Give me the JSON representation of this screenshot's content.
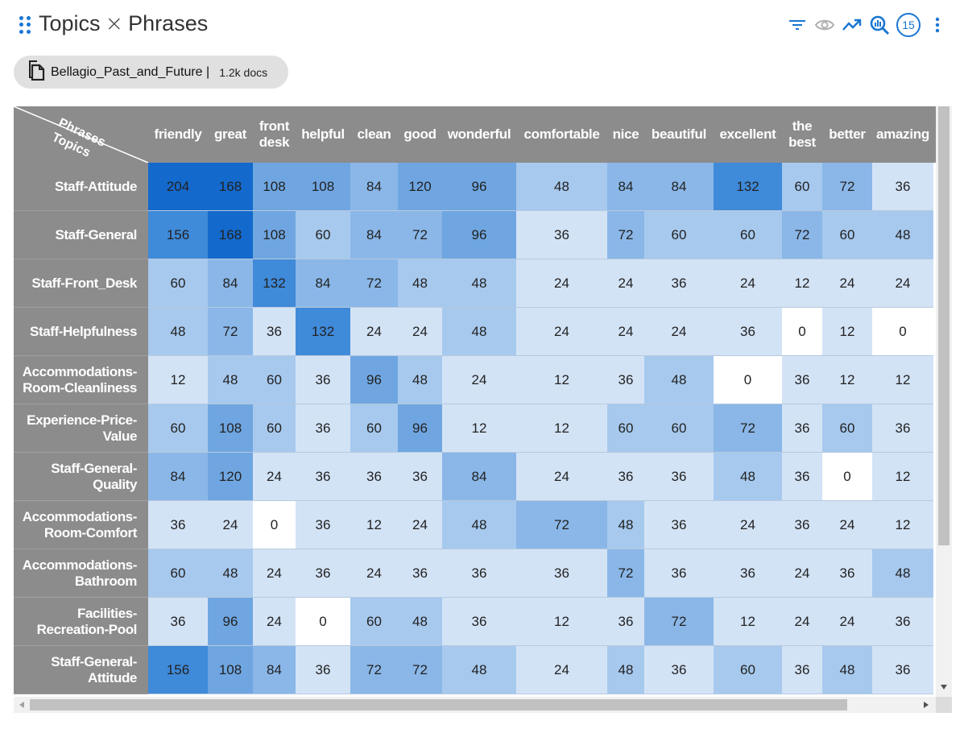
{
  "header": {
    "title_left": "Topics",
    "title_sep": "×",
    "title_right": "Phrases",
    "count": "15"
  },
  "toolbar_icons": [
    "filter-icon",
    "eye-icon",
    "trend-icon",
    "analytics-search-icon",
    "count-badge",
    "more-vert-icon"
  ],
  "dataset": {
    "name": "Bellagio_Past_and_Future",
    "separator": "|",
    "docs": "1.2k docs"
  },
  "corner": {
    "phrases": "Phrases",
    "topics": "Topics"
  },
  "colors": {
    "accent": "#1976d2",
    "header_bg": "#8c8c8c",
    "scale": [
      "#ffffff",
      "#d3e3f6",
      "#a7c9ee",
      "#8ab7e8",
      "#6fa6e1",
      "#3f8ad9",
      "#1469cc"
    ]
  },
  "columns": [
    {
      "label": "friendly",
      "w": 74
    },
    {
      "label": "great",
      "w": 56
    },
    {
      "label": "front desk",
      "w": 53
    },
    {
      "label": "helpful",
      "w": 68
    },
    {
      "label": "clean",
      "w": 59
    },
    {
      "label": "good",
      "w": 55
    },
    {
      "label": "wonderful",
      "w": 92
    },
    {
      "label": "comfortable",
      "w": 113
    },
    {
      "label": "nice",
      "w": 46
    },
    {
      "label": "beautiful",
      "w": 86
    },
    {
      "label": "excellent",
      "w": 85
    },
    {
      "label": "the best",
      "w": 50
    },
    {
      "label": "better",
      "w": 62
    },
    {
      "label": "amazing",
      "w": 76
    }
  ],
  "rows": [
    {
      "label": "Staff-Attitude",
      "values": [
        204,
        168,
        108,
        108,
        84,
        120,
        96,
        48,
        84,
        84,
        132,
        60,
        72,
        36
      ]
    },
    {
      "label": "Staff-General",
      "values": [
        156,
        168,
        108,
        60,
        84,
        72,
        96,
        36,
        72,
        60,
        60,
        72,
        60,
        48
      ]
    },
    {
      "label": "Staff-Front_Desk",
      "values": [
        60,
        84,
        132,
        84,
        72,
        48,
        48,
        24,
        24,
        36,
        24,
        12,
        24,
        24
      ]
    },
    {
      "label": "Staff-Helpfulness",
      "values": [
        48,
        72,
        36,
        132,
        24,
        24,
        48,
        24,
        24,
        24,
        36,
        0,
        12,
        0
      ]
    },
    {
      "label": "Accommodations-Room-Cleanliness",
      "values": [
        12,
        48,
        60,
        36,
        96,
        48,
        24,
        12,
        36,
        48,
        0,
        36,
        12,
        12
      ]
    },
    {
      "label": "Experience-Price-Value",
      "values": [
        60,
        108,
        60,
        36,
        60,
        96,
        12,
        12,
        60,
        60,
        72,
        36,
        60,
        36
      ]
    },
    {
      "label": "Staff-General-Quality",
      "values": [
        84,
        120,
        24,
        36,
        36,
        36,
        84,
        24,
        36,
        36,
        48,
        36,
        0,
        12
      ]
    },
    {
      "label": "Accommodations-Room-Comfort",
      "values": [
        36,
        24,
        0,
        36,
        12,
        24,
        48,
        72,
        48,
        36,
        24,
        36,
        24,
        12
      ]
    },
    {
      "label": "Accommodations-Bathroom",
      "values": [
        60,
        48,
        24,
        36,
        24,
        36,
        36,
        36,
        72,
        36,
        36,
        24,
        36,
        48
      ]
    },
    {
      "label": "Facilities-Recreation-Pool",
      "values": [
        36,
        96,
        24,
        0,
        60,
        48,
        36,
        12,
        36,
        72,
        12,
        24,
        24,
        36
      ]
    },
    {
      "label": "Staff-General-Attitude",
      "values": [
        156,
        108,
        84,
        36,
        72,
        72,
        48,
        24,
        48,
        36,
        60,
        36,
        48,
        36
      ]
    }
  ],
  "row_label_lines": [
    [
      "Staff-Attitude"
    ],
    [
      "Staff-General"
    ],
    [
      "Staff-Front_Desk"
    ],
    [
      "Staff-Helpfulness"
    ],
    [
      "Accommodations-",
      "Room-Cleanliness"
    ],
    [
      "Experience-Price-",
      "Value"
    ],
    [
      "Staff-General-",
      "Quality"
    ],
    [
      "Accommodations-",
      "Room-Comfort"
    ],
    [
      "Accommodations-",
      "Bathroom"
    ],
    [
      "Facilities-",
      "Recreation-Pool"
    ],
    [
      "Staff-General-",
      "Attitude"
    ]
  ],
  "col_label_lines": [
    [
      "friendly"
    ],
    [
      "great"
    ],
    [
      "front",
      "desk"
    ],
    [
      "helpful"
    ],
    [
      "clean"
    ],
    [
      "good"
    ],
    [
      "wonderful"
    ],
    [
      "comfortable"
    ],
    [
      "nice"
    ],
    [
      "beautiful"
    ],
    [
      "excellent"
    ],
    [
      "the",
      "best"
    ],
    [
      "better"
    ],
    [
      "amazing"
    ]
  ]
}
